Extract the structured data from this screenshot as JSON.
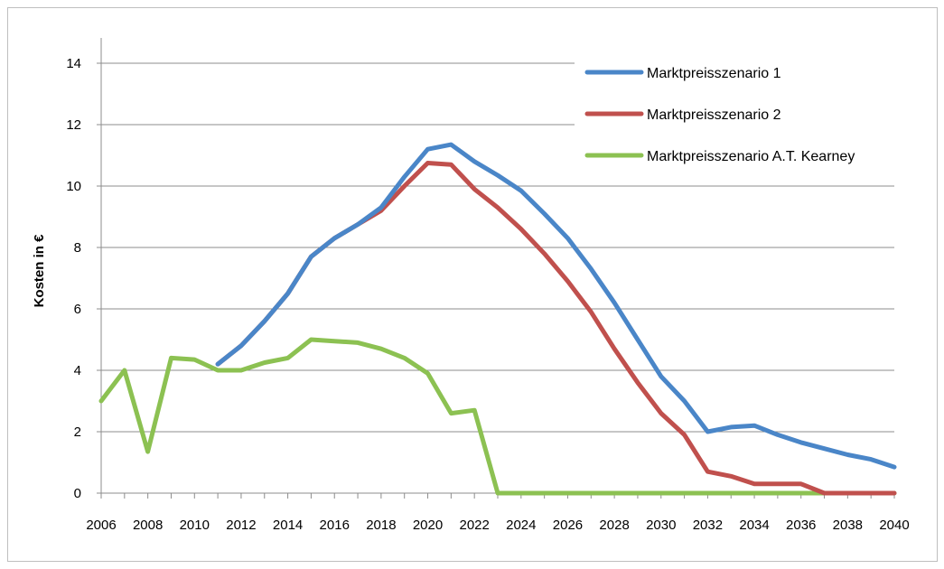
{
  "chart_data": {
    "type": "line",
    "title": "",
    "xlabel": "",
    "ylabel": "Kosten in €",
    "ylim": [
      0,
      14
    ],
    "xlim": [
      2006,
      2040
    ],
    "yticks": [
      0,
      2,
      4,
      6,
      8,
      10,
      12,
      14
    ],
    "xtick_labels": [
      "2006",
      "2008",
      "2010",
      "2012",
      "2014",
      "2016",
      "2018",
      "2020",
      "2022",
      "2024",
      "2026",
      "2028",
      "2030",
      "2032",
      "2034",
      "2036",
      "2038",
      "2040"
    ],
    "grid": "horizontal",
    "legend_position": "top-right",
    "series": [
      {
        "name": "Marktpreisszenario 1",
        "color": "#4a86c8",
        "points": [
          [
            2011,
            4.2
          ],
          [
            2012,
            4.8
          ],
          [
            2013,
            5.6
          ],
          [
            2014,
            6.5
          ],
          [
            2015,
            7.7
          ],
          [
            2016,
            8.3
          ],
          [
            2017,
            8.75
          ],
          [
            2018,
            9.3
          ],
          [
            2019,
            10.3
          ],
          [
            2020,
            11.2
          ],
          [
            2021,
            11.35
          ],
          [
            2022,
            10.8
          ],
          [
            2023,
            10.35
          ],
          [
            2024,
            9.85
          ],
          [
            2025,
            9.1
          ],
          [
            2026,
            8.3
          ],
          [
            2027,
            7.3
          ],
          [
            2028,
            6.2
          ],
          [
            2029,
            5.0
          ],
          [
            2030,
            3.8
          ],
          [
            2031,
            3.0
          ],
          [
            2032,
            2.0
          ],
          [
            2033,
            2.15
          ],
          [
            2034,
            2.2
          ],
          [
            2035,
            1.9
          ],
          [
            2036,
            1.65
          ],
          [
            2037,
            1.45
          ],
          [
            2038,
            1.25
          ],
          [
            2039,
            1.1
          ],
          [
            2040,
            0.85
          ]
        ]
      },
      {
        "name": "Marktpreisszenario 2",
        "color": "#c0504d",
        "points": [
          [
            2011,
            4.2
          ],
          [
            2012,
            4.8
          ],
          [
            2013,
            5.6
          ],
          [
            2014,
            6.5
          ],
          [
            2015,
            7.7
          ],
          [
            2016,
            8.3
          ],
          [
            2017,
            8.75
          ],
          [
            2018,
            9.2
          ],
          [
            2019,
            10.0
          ],
          [
            2020,
            10.75
          ],
          [
            2021,
            10.7
          ],
          [
            2022,
            9.9
          ],
          [
            2023,
            9.3
          ],
          [
            2024,
            8.6
          ],
          [
            2025,
            7.8
          ],
          [
            2026,
            6.9
          ],
          [
            2027,
            5.9
          ],
          [
            2028,
            4.7
          ],
          [
            2029,
            3.6
          ],
          [
            2030,
            2.6
          ],
          [
            2031,
            1.9
          ],
          [
            2032,
            0.7
          ],
          [
            2033,
            0.55
          ],
          [
            2034,
            0.3
          ],
          [
            2035,
            0.3
          ],
          [
            2036,
            0.3
          ],
          [
            2037,
            0.0
          ],
          [
            2038,
            0.0
          ],
          [
            2039,
            0.0
          ],
          [
            2040,
            0.0
          ]
        ]
      },
      {
        "name": "Marktpreisszenario A.T. Kearney",
        "color": "#8cc152",
        "points": [
          [
            2006,
            3.0
          ],
          [
            2007,
            4.0
          ],
          [
            2008,
            1.35
          ],
          [
            2009,
            4.4
          ],
          [
            2010,
            4.35
          ],
          [
            2011,
            4.0
          ],
          [
            2012,
            4.0
          ],
          [
            2013,
            4.25
          ],
          [
            2014,
            4.4
          ],
          [
            2015,
            5.0
          ],
          [
            2016,
            4.95
          ],
          [
            2017,
            4.9
          ],
          [
            2018,
            4.7
          ],
          [
            2019,
            4.4
          ],
          [
            2020,
            3.9
          ],
          [
            2021,
            2.6
          ],
          [
            2022,
            2.7
          ],
          [
            2023,
            0.0
          ],
          [
            2024,
            0.0
          ],
          [
            2025,
            0.0
          ],
          [
            2026,
            0.0
          ],
          [
            2027,
            0.0
          ],
          [
            2028,
            0.0
          ],
          [
            2029,
            0.0
          ],
          [
            2030,
            0.0
          ],
          [
            2031,
            0.0
          ],
          [
            2032,
            0.0
          ],
          [
            2033,
            0.0
          ],
          [
            2034,
            0.0
          ],
          [
            2035,
            0.0
          ],
          [
            2036,
            0.0
          ],
          [
            2037,
            0.0
          ],
          [
            2038,
            0.0
          ],
          [
            2039,
            0.0
          ],
          [
            2040,
            0.0
          ]
        ]
      }
    ]
  }
}
